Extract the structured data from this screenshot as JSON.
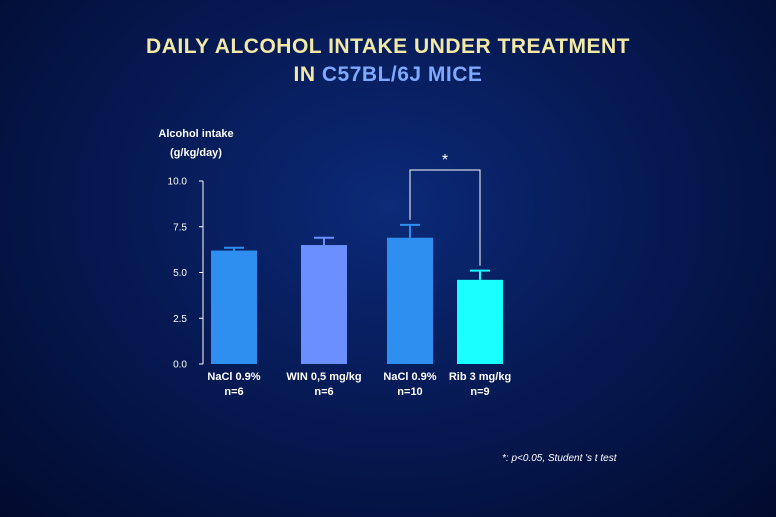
{
  "title_line1": "DAILY ALCOHOL INTAKE UNDER TREATMENT",
  "title_line2_prefix": "IN",
  "title_line2_highlight": "C57BL/6J MICE",
  "footnote": "*: p<0.05, Student 's t test",
  "significance_marker": "*",
  "colors": {
    "background": "#061a55",
    "title": "#f2e9a6",
    "title_highlight": "#7fa8ff",
    "bars": [
      "#2e8ff0",
      "#6b8fff",
      "#2e8ff0",
      "#19ffff"
    ]
  },
  "chart_data": {
    "type": "bar",
    "ylabel_line1": "Alcohol intake",
    "ylabel_line2": "(g/kg/day)",
    "categories": [
      "NaCl 0.9%",
      "WIN 0,5 mg/kg",
      "NaCl 0.9%",
      "Rib 3 mg/kg"
    ],
    "n_labels": [
      "n=6",
      "n=6",
      "n=10",
      "n=9"
    ],
    "values": [
      6.2,
      6.5,
      6.9,
      4.6
    ],
    "errors": [
      0.15,
      0.4,
      0.7,
      0.5
    ],
    "ylim": [
      0,
      10
    ],
    "yticks": [
      "0.0",
      "2.5",
      "5.0",
      "7.5",
      "10.0"
    ],
    "significance": {
      "between": [
        2,
        3
      ],
      "label": "*"
    }
  }
}
